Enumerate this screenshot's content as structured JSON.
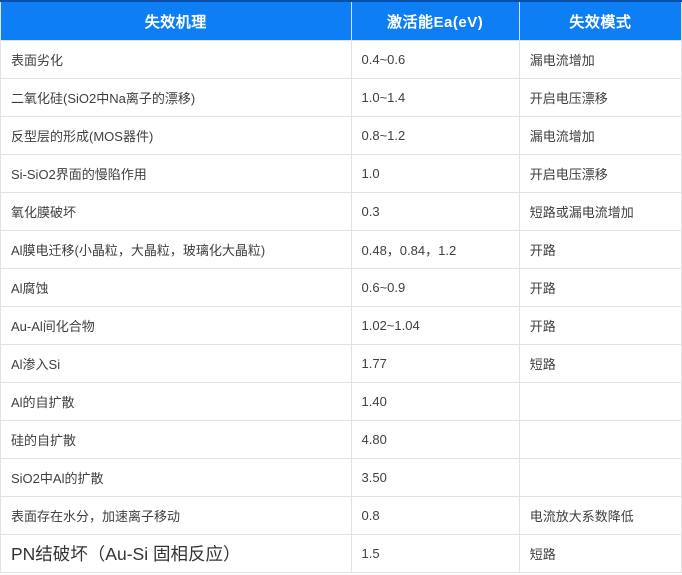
{
  "colors": {
    "header_bg": "#0e7ef5",
    "header_top_border": "#0a4da6",
    "header_text": "#ffffff",
    "grid_border": "#e2e2e2",
    "body_text": "#3f3f3f"
  },
  "header": {
    "columns": [
      "失效机理",
      "激活能Ea(eV)",
      "失效模式"
    ]
  },
  "table": {
    "rows": [
      {
        "mechanism": "表面劣化",
        "ea": "0.4~0.6",
        "mode": "漏电流增加"
      },
      {
        "mechanism": "二氧化硅(SiO2中Na离子的漂移)",
        "ea": "1.0~1.4",
        "mode": "开启电压漂移"
      },
      {
        "mechanism": "反型层的形成(MOS器件)",
        "ea": "0.8~1.2",
        "mode": "漏电流增加"
      },
      {
        "mechanism": "Si-SiO2界面的慢陷作用",
        "ea": "1.0",
        "mode": "开启电压漂移"
      },
      {
        "mechanism": "氧化膜破坏",
        "ea": "0.3",
        "mode": "短路或漏电流增加"
      },
      {
        "mechanism": "Al膜电迁移(小晶粒，大晶粒，玻璃化大晶粒)",
        "ea": "0.48，0.84，1.2",
        "mode": "开路"
      },
      {
        "mechanism": "Al腐蚀",
        "ea": "0.6~0.9",
        "mode": "开路"
      },
      {
        "mechanism": "Au-Al间化合物",
        "ea": "1.02~1.04",
        "mode": "开路"
      },
      {
        "mechanism": "Al渗入Si",
        "ea": "1.77",
        "mode": "短路"
      },
      {
        "mechanism": "Al的自扩散",
        "ea": "1.40",
        "mode": ""
      },
      {
        "mechanism": "硅的自扩散",
        "ea": "4.80",
        "mode": ""
      },
      {
        "mechanism": "SiO2中Al的扩散",
        "ea": "3.50",
        "mode": ""
      },
      {
        "mechanism": "表面存在水分，加速离子移动",
        "ea": "0.8",
        "mode": "电流放大系数降低"
      },
      {
        "mechanism": "PN结破坏（Au-Si 固相反应）",
        "ea": "1.5",
        "mode": "短路"
      }
    ]
  }
}
